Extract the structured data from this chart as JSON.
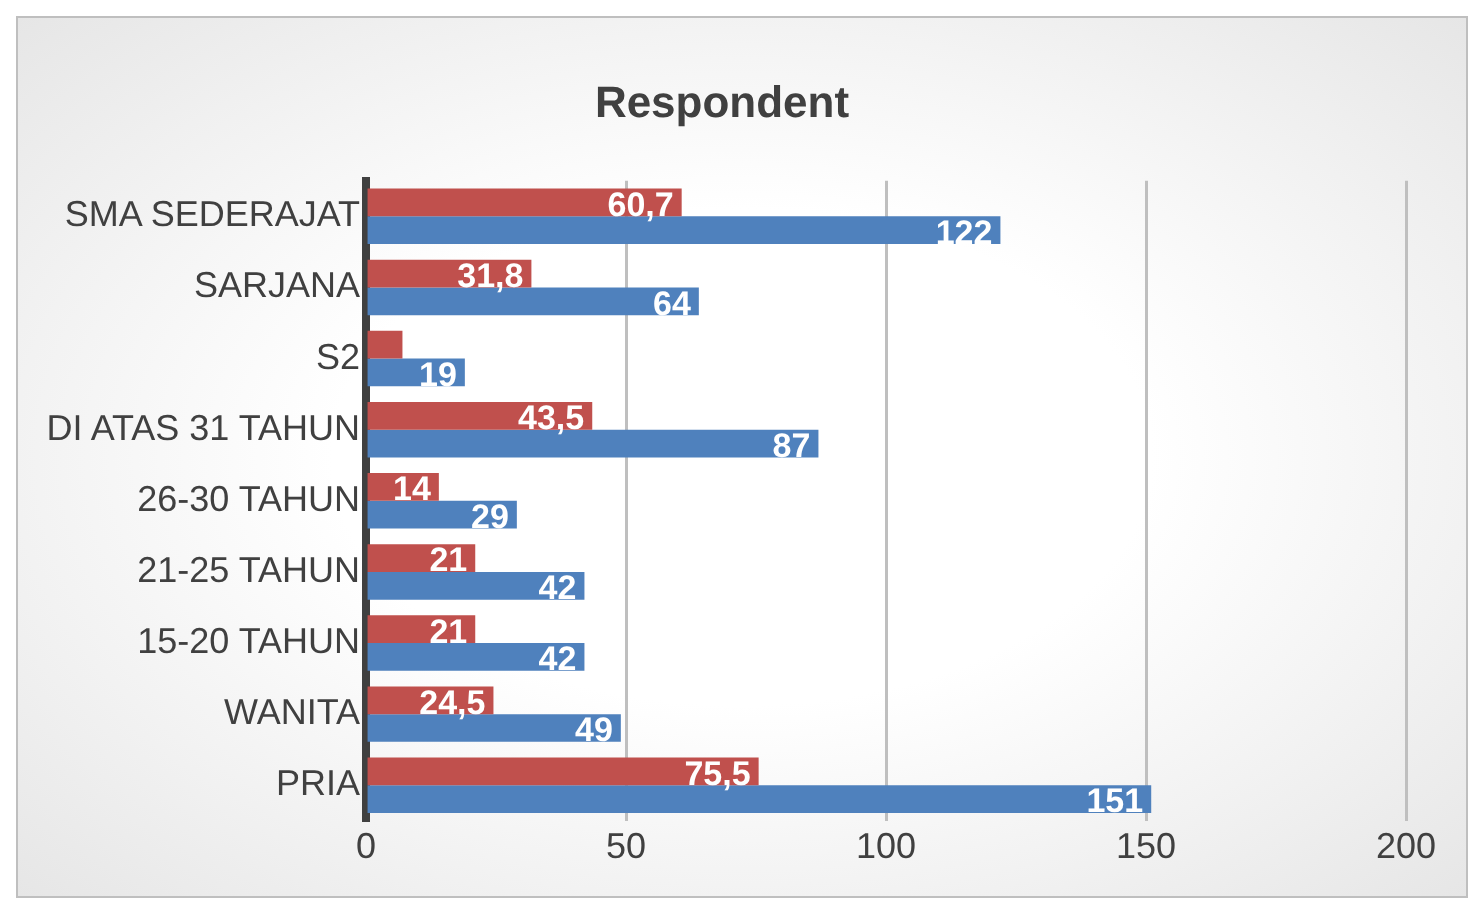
{
  "chart_data": {
    "type": "bar",
    "orientation": "horizontal",
    "title": "Respondent",
    "categories": [
      "SMA SEDERAJAT",
      "SARJANA",
      "S2",
      "DI ATAS 31 TAHUN",
      "26-30 TAHUN",
      "21-25 TAHUN",
      "15-20 TAHUN",
      "WANITA",
      "PRIA"
    ],
    "series": [
      {
        "color": "#c0504d",
        "values": [
          60.7,
          31.8,
          7,
          43.5,
          14,
          21,
          21,
          24.5,
          75.5
        ],
        "value_labels": [
          "60,7",
          "31,8",
          null,
          "43,5",
          "14",
          "21",
          "21",
          "24,5",
          "75,5"
        ]
      },
      {
        "color": "#4f81bd",
        "values": [
          122,
          64,
          19,
          87,
          29,
          42,
          42,
          49,
          151
        ],
        "value_labels": [
          "122",
          "64",
          "19",
          "87",
          "29",
          "42",
          "42",
          "49",
          "151"
        ]
      }
    ],
    "xlim": [
      0,
      200
    ],
    "xticks": [
      0,
      50,
      100,
      150,
      200
    ],
    "grid": "x"
  }
}
